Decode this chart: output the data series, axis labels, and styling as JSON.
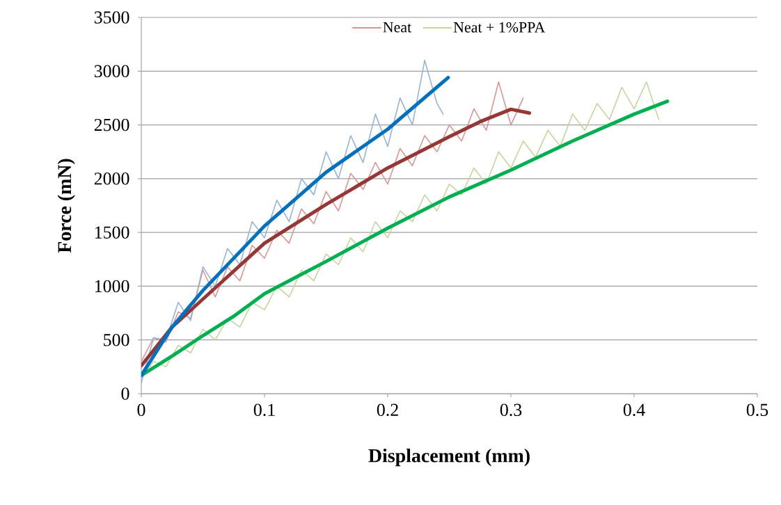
{
  "chart_data": {
    "type": "line",
    "xlabel": "Displacement (mm)",
    "ylabel": "Force (mN)",
    "xlim": [
      0,
      0.5
    ],
    "ylim": [
      0,
      3500
    ],
    "xticks": [
      0,
      0.1,
      0.2,
      0.3,
      0.4,
      0.5
    ],
    "yticks": [
      0,
      500,
      1000,
      1500,
      2000,
      2500,
      3000,
      3500
    ],
    "grid": "y",
    "legend": "top",
    "line_style": "solid",
    "marker": "none",
    "series": [
      {
        "name": "Neat",
        "color": "#d99694",
        "x": [
          0,
          0.01,
          0.02,
          0.03,
          0.04,
          0.05,
          0.06,
          0.07,
          0.08,
          0.09,
          0.1,
          0.11,
          0.12,
          0.13,
          0.14,
          0.15,
          0.16,
          0.17,
          0.18,
          0.19,
          0.2,
          0.21,
          0.22,
          0.23,
          0.24,
          0.25,
          0.26,
          0.27,
          0.28,
          0.29,
          0.3,
          0.31
        ],
        "values": [
          300,
          520,
          480,
          760,
          700,
          1150,
          900,
          1180,
          1050,
          1380,
          1260,
          1520,
          1400,
          1720,
          1580,
          1880,
          1700,
          2050,
          1900,
          2150,
          1950,
          2280,
          2120,
          2400,
          2250,
          2500,
          2350,
          2650,
          2450,
          2900,
          2500,
          2750
        ]
      },
      {
        "name": "Neat + 1%PPA",
        "color": "#c3d69b",
        "x": [
          0,
          0.01,
          0.02,
          0.03,
          0.04,
          0.05,
          0.06,
          0.07,
          0.08,
          0.09,
          0.1,
          0.11,
          0.12,
          0.13,
          0.14,
          0.15,
          0.16,
          0.17,
          0.18,
          0.19,
          0.2,
          0.21,
          0.22,
          0.23,
          0.24,
          0.25,
          0.26,
          0.27,
          0.28,
          0.29,
          0.3,
          0.31,
          0.32,
          0.33,
          0.34,
          0.35,
          0.36,
          0.37,
          0.38,
          0.39,
          0.4,
          0.41,
          0.42
        ],
        "values": [
          150,
          300,
          250,
          450,
          380,
          600,
          500,
          700,
          620,
          850,
          780,
          1000,
          900,
          1150,
          1050,
          1300,
          1200,
          1450,
          1320,
          1600,
          1450,
          1700,
          1600,
          1850,
          1700,
          1950,
          1850,
          2100,
          1950,
          2250,
          2100,
          2350,
          2200,
          2450,
          2300,
          2600,
          2450,
          2700,
          2550,
          2850,
          2650,
          2900,
          2550
        ]
      },
      {
        "color": "#95b3d7",
        "x": [
          0,
          0.01,
          0.02,
          0.03,
          0.04,
          0.05,
          0.06,
          0.07,
          0.08,
          0.09,
          0.1,
          0.11,
          0.12,
          0.13,
          0.14,
          0.15,
          0.16,
          0.17,
          0.18,
          0.19,
          0.2,
          0.21,
          0.22,
          0.23,
          0.24,
          0.245
        ],
        "values": [
          100,
          520,
          500,
          850,
          680,
          1180,
          1000,
          1350,
          1200,
          1600,
          1450,
          1800,
          1600,
          2000,
          1850,
          2250,
          2000,
          2400,
          2150,
          2600,
          2300,
          2750,
          2500,
          3100,
          2700,
          2600
        ]
      },
      {
        "type": "line",
        "color": "#953735",
        "x": [
          0,
          0.025,
          0.05,
          0.1,
          0.15,
          0.2,
          0.25,
          0.275,
          0.3,
          0.315
        ],
        "values": [
          260,
          620,
          880,
          1400,
          1760,
          2100,
          2390,
          2530,
          2645,
          2610
        ]
      },
      {
        "type": "line",
        "color": "#00b050",
        "x": [
          0,
          0.025,
          0.05,
          0.075,
          0.1,
          0.125,
          0.15,
          0.2,
          0.25,
          0.3,
          0.35,
          0.4,
          0.427
        ],
        "values": [
          170,
          350,
          540,
          720,
          930,
          1080,
          1230,
          1540,
          1830,
          2080,
          2350,
          2600,
          2720
        ]
      },
      {
        "type": "line",
        "color": "#0070c0",
        "x": [
          0,
          0.025,
          0.05,
          0.1,
          0.15,
          0.2,
          0.249
        ],
        "values": [
          170,
          620,
          960,
          1560,
          2060,
          2460,
          2940
        ]
      }
    ]
  }
}
